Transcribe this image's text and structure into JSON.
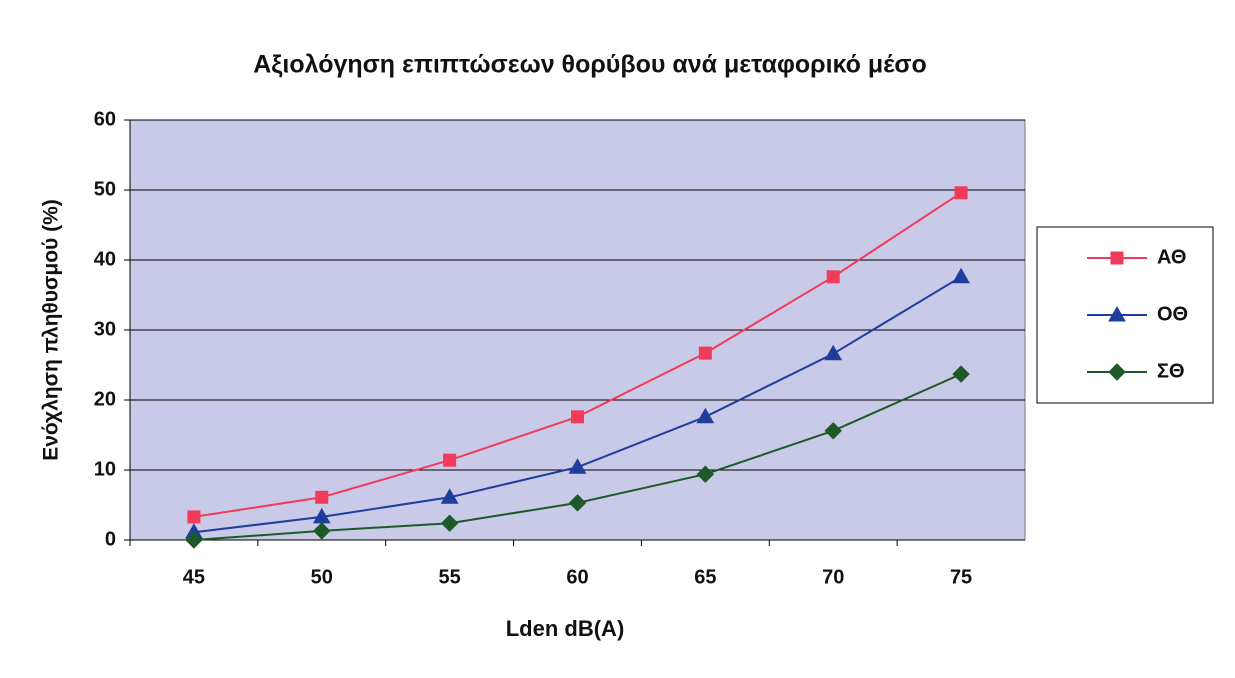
{
  "chart_data": {
    "type": "line",
    "title": "Αξιολόγηση επιπτώσεων θορύβου ανά μεταφορικό μέσο",
    "x_label": "Lden dB(A)",
    "y_label": "Ενόχληση πληθυσμού (%)",
    "categories": [
      "45",
      "50",
      "55",
      "60",
      "65",
      "70",
      "75"
    ],
    "ylim": [
      0,
      60
    ],
    "yticks": [
      0,
      10,
      20,
      30,
      40,
      50,
      60
    ],
    "grid": true,
    "legend": "right",
    "series": [
      {
        "name": "ΑΘ",
        "color": "#f03c5a",
        "marker": "square",
        "values": [
          3.3,
          6.1,
          11.4,
          17.6,
          26.7,
          37.6,
          49.6
        ]
      },
      {
        "name": "ΟΘ",
        "color": "#1f3d9c",
        "marker": "triangle",
        "values": [
          1.1,
          3.3,
          6.1,
          10.4,
          17.6,
          26.6,
          37.6
        ]
      },
      {
        "name": "ΣΘ",
        "color": "#1e5a28",
        "marker": "diamond",
        "values": [
          0,
          1.3,
          2.4,
          5.3,
          9.4,
          15.6,
          23.7
        ]
      }
    ]
  }
}
